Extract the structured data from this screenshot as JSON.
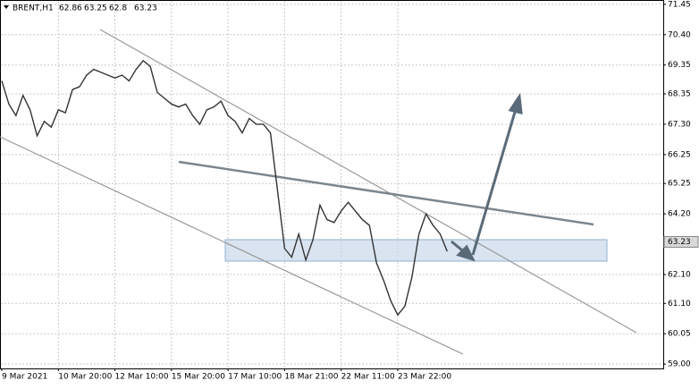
{
  "chart_data": {
    "type": "line",
    "symbol": "BRENT,H1",
    "ohlc": [
      62.86,
      63.25,
      62.8,
      63.23
    ],
    "last_price": 63.23,
    "color": "#333333",
    "categories": [
      "9 Mar 2021",
      null,
      null,
      null,
      null,
      null,
      null,
      null,
      "10 Mar 20:00",
      null,
      null,
      null,
      null,
      null,
      null,
      null,
      "12 Mar 10:00",
      null,
      null,
      null,
      null,
      null,
      null,
      null,
      "15 Mar 20:00",
      null,
      null,
      null,
      null,
      null,
      null,
      null,
      "17 Mar 10:00",
      null,
      null,
      null,
      null,
      null,
      null,
      null,
      "18 Mar 21:00",
      null,
      null,
      null,
      null,
      null,
      null,
      null,
      "22 Mar 11:00",
      null,
      null,
      null,
      null,
      null,
      null,
      null,
      "23 Mar 22:00",
      null,
      null,
      null,
      null,
      null,
      null,
      null
    ],
    "values": [
      68.8,
      68.0,
      67.6,
      68.3,
      67.8,
      66.9,
      67.4,
      67.2,
      67.8,
      67.7,
      68.5,
      68.6,
      69.0,
      69.2,
      69.1,
      69.0,
      68.9,
      69.0,
      68.8,
      69.2,
      69.5,
      69.3,
      68.4,
      68.2,
      68.0,
      67.9,
      68.0,
      67.6,
      67.3,
      67.8,
      67.9,
      68.1,
      67.6,
      67.4,
      67.0,
      67.5,
      67.3,
      67.3,
      67.0,
      65.0,
      63.0,
      62.7,
      63.5,
      62.6,
      63.3,
      64.5,
      64.0,
      63.9,
      64.3,
      64.6,
      64.3,
      64.0,
      63.8,
      62.5,
      61.9,
      61.2,
      60.7,
      61.0,
      62.0,
      63.5,
      64.2,
      63.8,
      63.5,
      62.9
    ],
    "ylim": [
      58.85,
      71.6
    ],
    "yticks": [
      71.45,
      {
        "value": 70.4,
        "label": "70.40"
      },
      69.35,
      68.35,
      {
        "value": 67.3,
        "label": "67.30"
      },
      66.25,
      65.25,
      {
        "value": 64.2,
        "label": "64.20"
      },
      {
        "value": 62.1,
        "label": "62.10"
      },
      {
        "value": 61.1,
        "label": "61.10"
      },
      60.05,
      {
        "value": 59,
        "label": "59.00"
      }
    ],
    "grid": true
  }
}
